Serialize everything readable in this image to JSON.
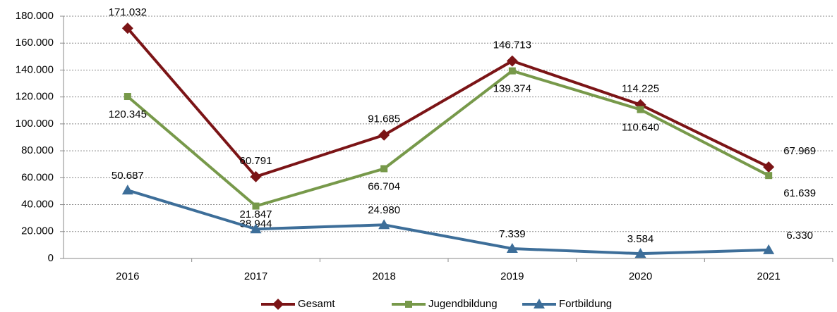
{
  "chart_data": {
    "type": "line",
    "categories": [
      "2016",
      "2017",
      "2018",
      "2019",
      "2020",
      "2021"
    ],
    "series": [
      {
        "name": "Gesamt",
        "color": "#7b1416",
        "marker": "diamond",
        "values": [
          171032,
          60791,
          91685,
          146713,
          114225,
          67969
        ],
        "value_labels": [
          "171.032",
          "60.791",
          "91.685",
          "146.713",
          "114.225",
          "67.969"
        ]
      },
      {
        "name": "Jugendbildung",
        "color": "#77994a",
        "marker": "square",
        "values": [
          120345,
          38944,
          66704,
          139374,
          110640,
          61639
        ],
        "value_labels": [
          "120.345",
          "38.944",
          "66.704",
          "139.374",
          "110.640",
          "61.639"
        ]
      },
      {
        "name": "Fortbildung",
        "color": "#3d6e99",
        "marker": "triangle",
        "values": [
          50687,
          21847,
          24980,
          7339,
          3584,
          6330
        ],
        "value_labels": [
          "50.687",
          "21.847",
          "24.980",
          "7.339",
          "3.584",
          "6.330"
        ]
      }
    ],
    "ylim": [
      0,
      180000
    ],
    "yticks": [
      0,
      {
        "value": 20000,
        "label": "20.000"
      },
      {
        "value": 40000,
        "label": "40.000"
      },
      {
        "value": 60000,
        "label": "60.000"
      },
      {
        "value": 80000,
        "label": "80.000"
      },
      {
        "value": 100000,
        "label": "100.000"
      },
      {
        "value": 120000,
        "label": "120.000"
      },
      {
        "value": 140000,
        "label": "140.000"
      },
      {
        "value": 160000,
        "label": "160.000"
      },
      {
        "value": 180000,
        "label": "180.000"
      }
    ],
    "grid": true,
    "legend": "bottom"
  }
}
